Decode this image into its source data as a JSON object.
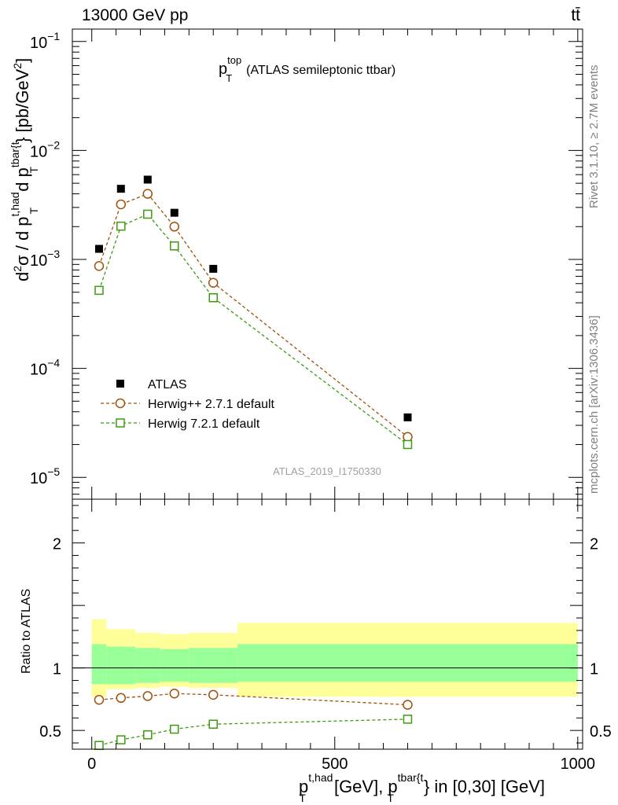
{
  "header": {
    "left": "13000 GeV pp",
    "right": "tt̄"
  },
  "side_labels": {
    "rivet": "Rivet 3.1.10, ≥ 2.7M events",
    "mcplots": "mcplots.cern.ch [arXiv:1306.3436]"
  },
  "analysis_id": "ATLAS_2019_I1750330",
  "chart_data": [
    {
      "type": "scatter",
      "title": "p_T^top (ATLAS semileptonic ttbar)",
      "title_parts": {
        "p": "p",
        "sup": "top",
        "sub": "T",
        "rest": "(ATLAS semileptonic ttbar)"
      },
      "ylabel": "d²σ / d p_T^{t,had} d p_T^{tbar{t}} [pb/GeV²]",
      "ylabel_parts": {
        "d2": "d",
        "sup2": "2",
        "sigma": "σ / d p",
        "sub1": "T",
        "sup1": "t,had",
        "d_p": "d p",
        "sub2": "T",
        "sup_tbar": "tbar{t",
        "unit": "} [pb/GeV",
        "unit_sup": "2",
        "unit_close": "]"
      },
      "yscale": "log",
      "ylim": [
        6.3e-06,
        0.13
      ],
      "xlim": [
        -40,
        1010
      ],
      "yticks": [
        {
          "v": 0.1,
          "m": "10",
          "e": "−1"
        },
        {
          "v": 0.01,
          "m": "10",
          "e": "−2"
        },
        {
          "v": 0.001,
          "m": "10",
          "e": "−3"
        },
        {
          "v": 0.0001,
          "m": "10",
          "e": "−4"
        },
        {
          "v": 1e-05,
          "m": "10",
          "e": "−5"
        }
      ],
      "legend_position": "bottom-left",
      "series": [
        {
          "name": "ATLAS",
          "marker": "filled-square",
          "color": "#000000",
          "x": [
            15,
            60,
            115,
            170,
            250,
            650
          ],
          "y": [
            0.00125,
            0.00445,
            0.0054,
            0.00268,
            0.00082,
            3.55e-05
          ]
        },
        {
          "name": "Herwig++ 2.7.1 default",
          "marker": "open-circle",
          "color": "#a0500a",
          "x": [
            15,
            60,
            115,
            170,
            250,
            650
          ],
          "y": [
            0.00087,
            0.0032,
            0.004,
            0.002,
            0.00061,
            2.35e-05
          ]
        },
        {
          "name": "Herwig 7.2.1 default",
          "marker": "open-square",
          "color": "#3d9b0f",
          "x": [
            15,
            60,
            115,
            170,
            250,
            650
          ],
          "y": [
            0.00052,
            0.00202,
            0.0026,
            0.00133,
            0.000445,
            2e-05
          ]
        }
      ]
    },
    {
      "type": "line",
      "ylabel": "Ratio to ATLAS",
      "xlabel": "p_T^{t,had} [GeV], p_T^{tbar{t}} in [0,30] [GeV]",
      "xlabel_parts": {
        "p1": "p",
        "sub1": "T",
        "sup1": "t,had",
        "mid": "[GeV], p",
        "sub2": "T",
        "sup2": "tbar{t",
        "end": "} in [0,30] [GeV]"
      },
      "ylim": [
        0.35,
        2.35
      ],
      "xlim": [
        -40,
        1010
      ],
      "xticks": [
        {
          "v": 0,
          "label": "0"
        },
        {
          "v": 500,
          "label": "500"
        },
        {
          "v": 1000,
          "label": "1000"
        }
      ],
      "yticks": [
        {
          "v": 0.5,
          "label": "0.5"
        },
        {
          "v": 1,
          "label": "1"
        },
        {
          "v": 2,
          "label": "2"
        }
      ],
      "bands": {
        "colors": {
          "outer": "#ffff99",
          "inner": "#99ff99"
        },
        "bins": [
          {
            "x0": 0,
            "x1": 30,
            "inner": [
              0.87,
              1.19
            ],
            "outer": [
              0.77,
              1.39
            ]
          },
          {
            "x0": 30,
            "x1": 90,
            "inner": [
              0.87,
              1.17
            ],
            "outer": [
              0.83,
              1.31
            ]
          },
          {
            "x0": 90,
            "x1": 140,
            "inner": [
              0.88,
              1.16
            ],
            "outer": [
              0.84,
              1.28
            ]
          },
          {
            "x0": 140,
            "x1": 200,
            "inner": [
              0.89,
              1.15
            ],
            "outer": [
              0.85,
              1.27
            ]
          },
          {
            "x0": 200,
            "x1": 300,
            "inner": [
              0.88,
              1.16
            ],
            "outer": [
              0.84,
              1.28
            ]
          },
          {
            "x0": 300,
            "x1": 1000,
            "inner": [
              0.89,
              1.19
            ],
            "outer": [
              0.77,
              1.36
            ]
          }
        ]
      },
      "series": [
        {
          "name": "Herwig++ 2.7.1 default",
          "marker": "open-circle",
          "color": "#a0500a",
          "x": [
            15,
            60,
            115,
            170,
            250,
            650
          ],
          "y": [
            0.745,
            0.76,
            0.775,
            0.795,
            0.785,
            0.705
          ]
        },
        {
          "name": "Herwig 7.2.1 default",
          "marker": "open-square",
          "color": "#3d9b0f",
          "x": [
            15,
            60,
            115,
            170,
            250,
            650
          ],
          "y": [
            0.38,
            0.425,
            0.465,
            0.51,
            0.55,
            0.59
          ]
        }
      ]
    }
  ]
}
